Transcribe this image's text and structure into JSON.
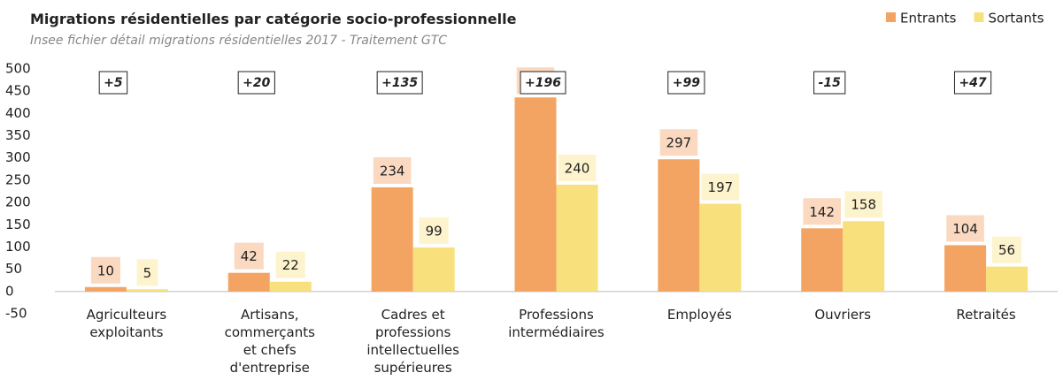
{
  "chart_data": {
    "type": "bar",
    "title": "Migrations résidentielles par catégorie socio-professionnelle",
    "subtitle": "Insee fichier détail migrations résidentielles 2017 - Traitement GTC",
    "categories": [
      "Agriculteurs exploitants",
      "Artisans, commerçants et chefs d'entreprise",
      "Cadres et professions intellectuelles supérieures",
      "Professions intermédiaires",
      "Employés",
      "Ouvriers",
      "Retraités"
    ],
    "series": [
      {
        "name": "Entrants",
        "color": "#f4a462",
        "label_bg": "#fbd9c0",
        "values": [
          10,
          42,
          234,
          436,
          297,
          142,
          104
        ]
      },
      {
        "name": "Sortants",
        "color": "#f8e07c",
        "label_bg": "#fdf3cd",
        "values": [
          5,
          22,
          99,
          240,
          197,
          158,
          56
        ]
      }
    ],
    "annotations": [
      "+5",
      "+20",
      "+135",
      "+196",
      "+99",
      "-15",
      "+47"
    ],
    "ylim": [
      -50,
      500
    ],
    "yticks": [
      -50,
      0,
      50,
      100,
      150,
      200,
      250,
      300,
      350,
      400,
      450,
      500
    ],
    "grid": false,
    "legend": "top-right"
  }
}
